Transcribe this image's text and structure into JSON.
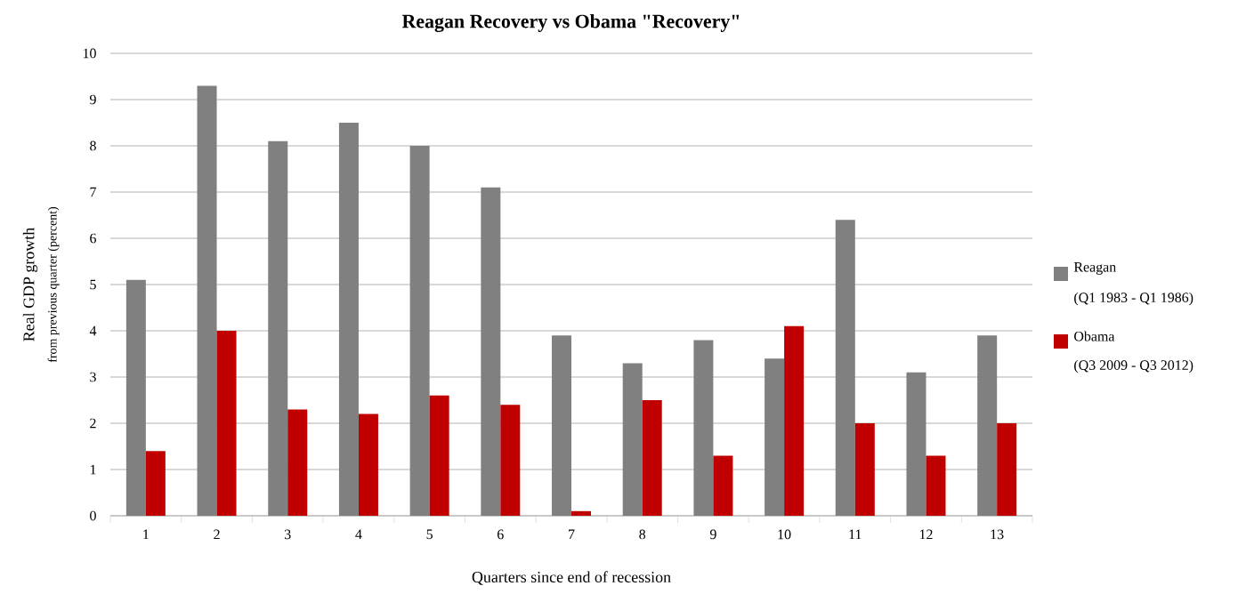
{
  "chart_data": {
    "type": "bar",
    "title": "Reagan Recovery vs Obama \"Recovery\"",
    "xlabel": "Quarters since end of recession",
    "ylabel": "Real GDP growth",
    "categories": [
      "1",
      "2",
      "3",
      "4",
      "5",
      "6",
      "7",
      "8",
      "9",
      "10",
      "11",
      "12",
      "13"
    ],
    "series": [
      {
        "name": "Reagan",
        "color": "#808080",
        "values": [
          5.1,
          9.3,
          8.1,
          8.5,
          8.0,
          7.1,
          3.9,
          3.3,
          3.8,
          3.4,
          6.4,
          3.1,
          3.9
        ]
      },
      {
        "name": "Obama",
        "color": "#c00000",
        "values": [
          1.4,
          4.0,
          2.3,
          2.2,
          2.6,
          2.4,
          0.1,
          2.5,
          1.3,
          4.1,
          2.0,
          1.3,
          2.0
        ]
      }
    ],
    "annotations": [
      "(Q1 1983 - Q1 1986)",
      "(Q3 2009 - Q3 2012)",
      "from previous quarter (percent)"
    ],
    "ylim": [
      0,
      10
    ],
    "yticks": [
      0,
      1,
      2,
      3,
      4,
      5,
      6,
      7,
      8,
      9,
      10
    ],
    "grid": "y",
    "legend": "right"
  }
}
